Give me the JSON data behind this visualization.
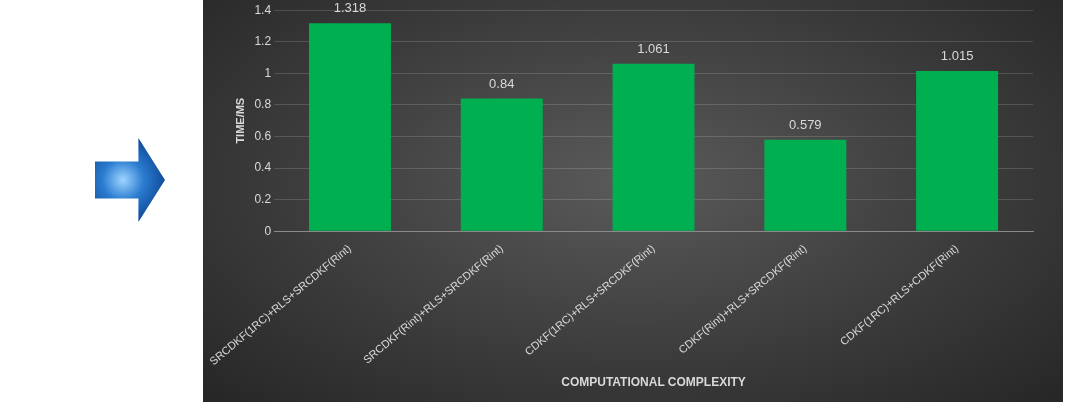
{
  "chart_data": {
    "type": "bar",
    "xlabel": "COMPUTATIONAL COMPLEXITY",
    "ylabel": "TIME/MS",
    "categories": [
      "SRCDKF(1RC)+RLS+SRCDKF(Rint)",
      "SRCDKF(Rint)+RLS+SRCDKF(Rint)",
      "CDKF(1RC)+RLS+SRCDKF(Rint)",
      "CDKF(Rint)+RLS+SRCDKF(Rint)",
      "CDKF(1RC)+RLS+CDKF(Rint)"
    ],
    "values": [
      1.318,
      0.84,
      1.061,
      0.579,
      1.015
    ],
    "color": "#00b050",
    "ylim": [
      0,
      1.4
    ],
    "yticks": [
      0,
      0.2,
      0.4,
      0.6,
      0.8,
      1,
      1.2,
      1.4
    ],
    "grid": "y",
    "data_labels": true
  }
}
